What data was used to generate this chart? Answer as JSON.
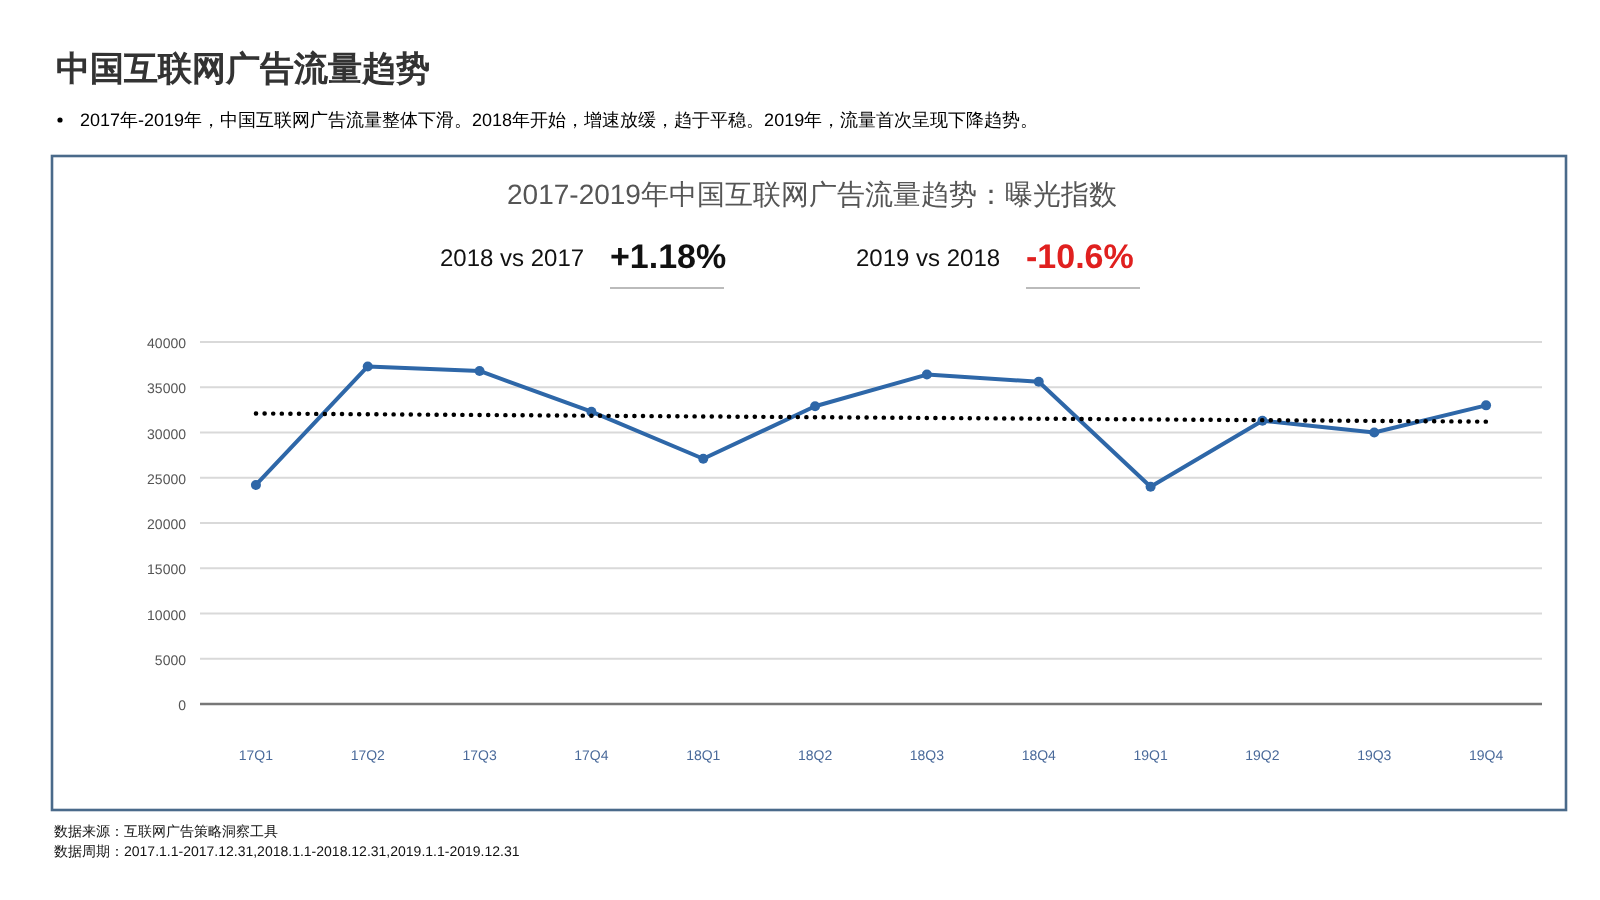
{
  "chart_data": {
    "type": "line",
    "title": "中国互联网广告流量趋势",
    "subtitle": "2017-2019年中国互联网广告流量趋势：曝光指数",
    "categories": [
      "17Q1",
      "17Q2",
      "17Q3",
      "17Q4",
      "18Q1",
      "18Q2",
      "18Q3",
      "18Q4",
      "19Q1",
      "19Q2",
      "19Q3",
      "19Q4"
    ],
    "series": [
      {
        "color": "#2e67a8",
        "values": [
          24200,
          37300,
          36800,
          32300,
          27100,
          32900,
          36400,
          35600,
          24000,
          31300,
          30000,
          33000
        ],
        "marker": "circle",
        "line_style": "solid"
      },
      {
        "type": "line",
        "color": "#000000",
        "x": [
          "17Q1",
          "19Q4"
        ],
        "values": [
          32100,
          31200
        ],
        "marker": "none",
        "line_style": "dotted"
      }
    ],
    "ylim": [
      0,
      40000
    ],
    "yticks": [
      0,
      5000,
      10000,
      15000,
      20000,
      25000,
      30000,
      35000,
      40000
    ],
    "grid": "y",
    "annotations": [
      "2017年-2019年，中国互联网广告流量整体下滑。2018年开始，增速放缓，趋于平稳。2019年，流量首次呈现下降趋势。",
      "2018 vs 2017",
      "+1.18%",
      "2019 vs 2018",
      "-10.6%",
      "数据来源：互联网广告策略洞察工具",
      "数据周期：2017.1.1-2017.12.31,2018.1.1-2018.12.31,2019.1.1-2019.12.31"
    ]
  }
}
